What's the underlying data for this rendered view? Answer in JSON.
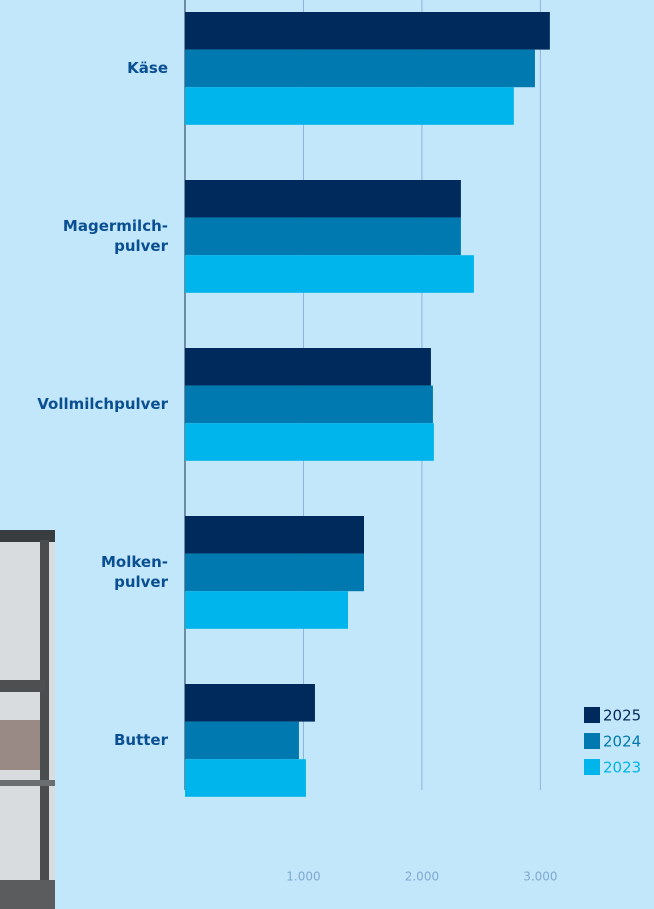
{
  "chart_data": {
    "type": "bar",
    "orientation": "horizontal",
    "categories": [
      "Käse",
      "Magermilch-\npulver",
      "Vollmilchpulver",
      "Molken-\npulver",
      "Butter"
    ],
    "series": [
      {
        "name": "2025",
        "color": "#002a5c",
        "values": [
          3080,
          2329,
          2076,
          1511,
          1097
        ]
      },
      {
        "name": "2024",
        "color": "#0079b0",
        "values": [
          2954,
          2329,
          2093,
          1511,
          962
        ]
      },
      {
        "name": "2023",
        "color": "#00b5eb",
        "values": [
          2776,
          2439,
          2101,
          1376,
          1021
        ]
      }
    ],
    "xlim": [
      0,
      3900
    ],
    "xticks": [
      {
        "value": 1000,
        "label": "1.000"
      },
      {
        "value": 2000,
        "label": "2.000"
      },
      {
        "value": 3000,
        "label": "3.000"
      }
    ],
    "grid": true,
    "legend": "bottom-right"
  }
}
